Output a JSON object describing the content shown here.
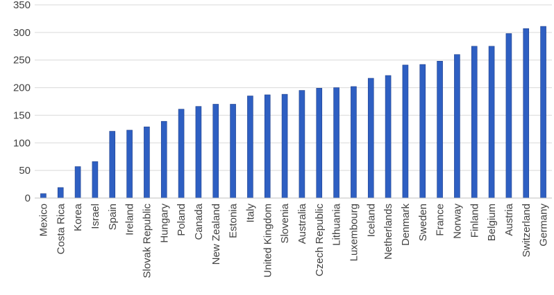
{
  "chart_data": {
    "type": "bar",
    "title": "",
    "xlabel": "",
    "ylabel": "",
    "ylim": [
      0,
      350
    ],
    "yticks": [
      0,
      50,
      100,
      150,
      200,
      250,
      300,
      350
    ],
    "grid": true,
    "legend": "none",
    "bar_color": "#2e5fc2",
    "categories": [
      "Mexico",
      "Costa Rica",
      "Korea",
      "Israel",
      "Spain",
      "Ireland",
      "Slovak Republic",
      "Hungary",
      "Poland",
      "Canada",
      "New Zealand",
      "Estonia",
      "Italy",
      "United Kingdom",
      "Slovenia",
      "Australia",
      "Czech Republic",
      "Lithuania",
      "Luxembourg",
      "Iceland",
      "Netherlands",
      "Denmark",
      "Sweden",
      "France",
      "Norway",
      "Finland",
      "Belgium",
      "Austria",
      "Switzerland",
      "Germany"
    ],
    "values": [
      8,
      19,
      57,
      66,
      121,
      123,
      129,
      139,
      161,
      166,
      170,
      170,
      185,
      187,
      188,
      195,
      199,
      200,
      202,
      217,
      222,
      241,
      242,
      248,
      260,
      275,
      275,
      298,
      307,
      311
    ]
  }
}
